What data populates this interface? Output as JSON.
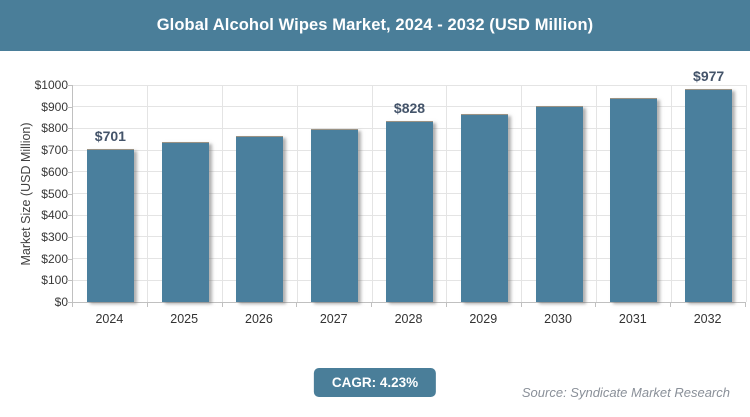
{
  "header": {
    "title": "Global Alcohol Wipes Market, 2024 - 2032 (USD Million)"
  },
  "chart_data": {
    "type": "bar",
    "title": "Global Alcohol Wipes Market, 2024 - 2032 (USD Million)",
    "categories": [
      "2024",
      "2025",
      "2026",
      "2027",
      "2028",
      "2029",
      "2030",
      "2031",
      "2032"
    ],
    "values": [
      701,
      731,
      762,
      794,
      828,
      862,
      899,
      937,
      977
    ],
    "data_labels": [
      "$701",
      "",
      "",
      "",
      "$828",
      "",
      "",
      "",
      "$977"
    ],
    "ylabel": "Market Size (USD Million)",
    "xlabel": "",
    "ylim": [
      0,
      1000
    ],
    "ytick_step": 100,
    "ytick_labels": [
      "$0",
      "$100",
      "$200",
      "$300",
      "$400",
      "$500",
      "$600",
      "$700",
      "$800",
      "$900",
      "$1000"
    ],
    "grid": true,
    "legend": false,
    "bar_color": "#4A7F9D",
    "data_label_color": "#44546A"
  },
  "footer": {
    "cagr_badge": "CAGR: 4.23%",
    "source": "Source: Syndicate Market Research"
  },
  "colors": {
    "accent_teal": "#4A7E99",
    "grid_line": "#E4E4E4",
    "axis_line": "#C0C0C0",
    "tick_text": "#383838",
    "source_text": "#8A9099"
  }
}
